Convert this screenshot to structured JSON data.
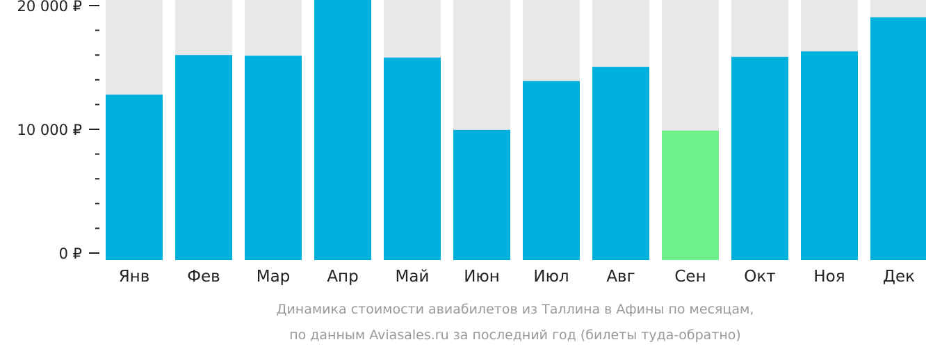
{
  "chart_data": {
    "type": "bar",
    "categories": [
      "Янв",
      "Фев",
      "Мар",
      "Апр",
      "Май",
      "Июн",
      "Июл",
      "Авг",
      "Сен",
      "Окт",
      "Ноя",
      "Дек"
    ],
    "values": [
      12800,
      16000,
      15950,
      20600,
      15800,
      9950,
      13900,
      15050,
      9900,
      15850,
      16300,
      19050
    ],
    "highlight_index": 8,
    "ylim": [
      0,
      20600
    ],
    "yticks": [
      {
        "value": 0,
        "label": "0 ₽"
      },
      {
        "value": 10000,
        "label": "10 000 ₽"
      },
      {
        "value": 20000,
        "label": "20 000 ₽"
      }
    ],
    "minor_tick_step": 2000,
    "caption_lines": [
      "Динамика стоимости авиабилетов из Таллина в Афины по месяцам,",
      "по данным Aviasales.ru за последний год (билеты туда-обратно)"
    ],
    "colors": {
      "bar": "#00b0dd",
      "highlight": "#6ef08a",
      "background_bar": "#e8e8e8",
      "axis": "#222222",
      "caption": "#9a9a9a"
    }
  }
}
